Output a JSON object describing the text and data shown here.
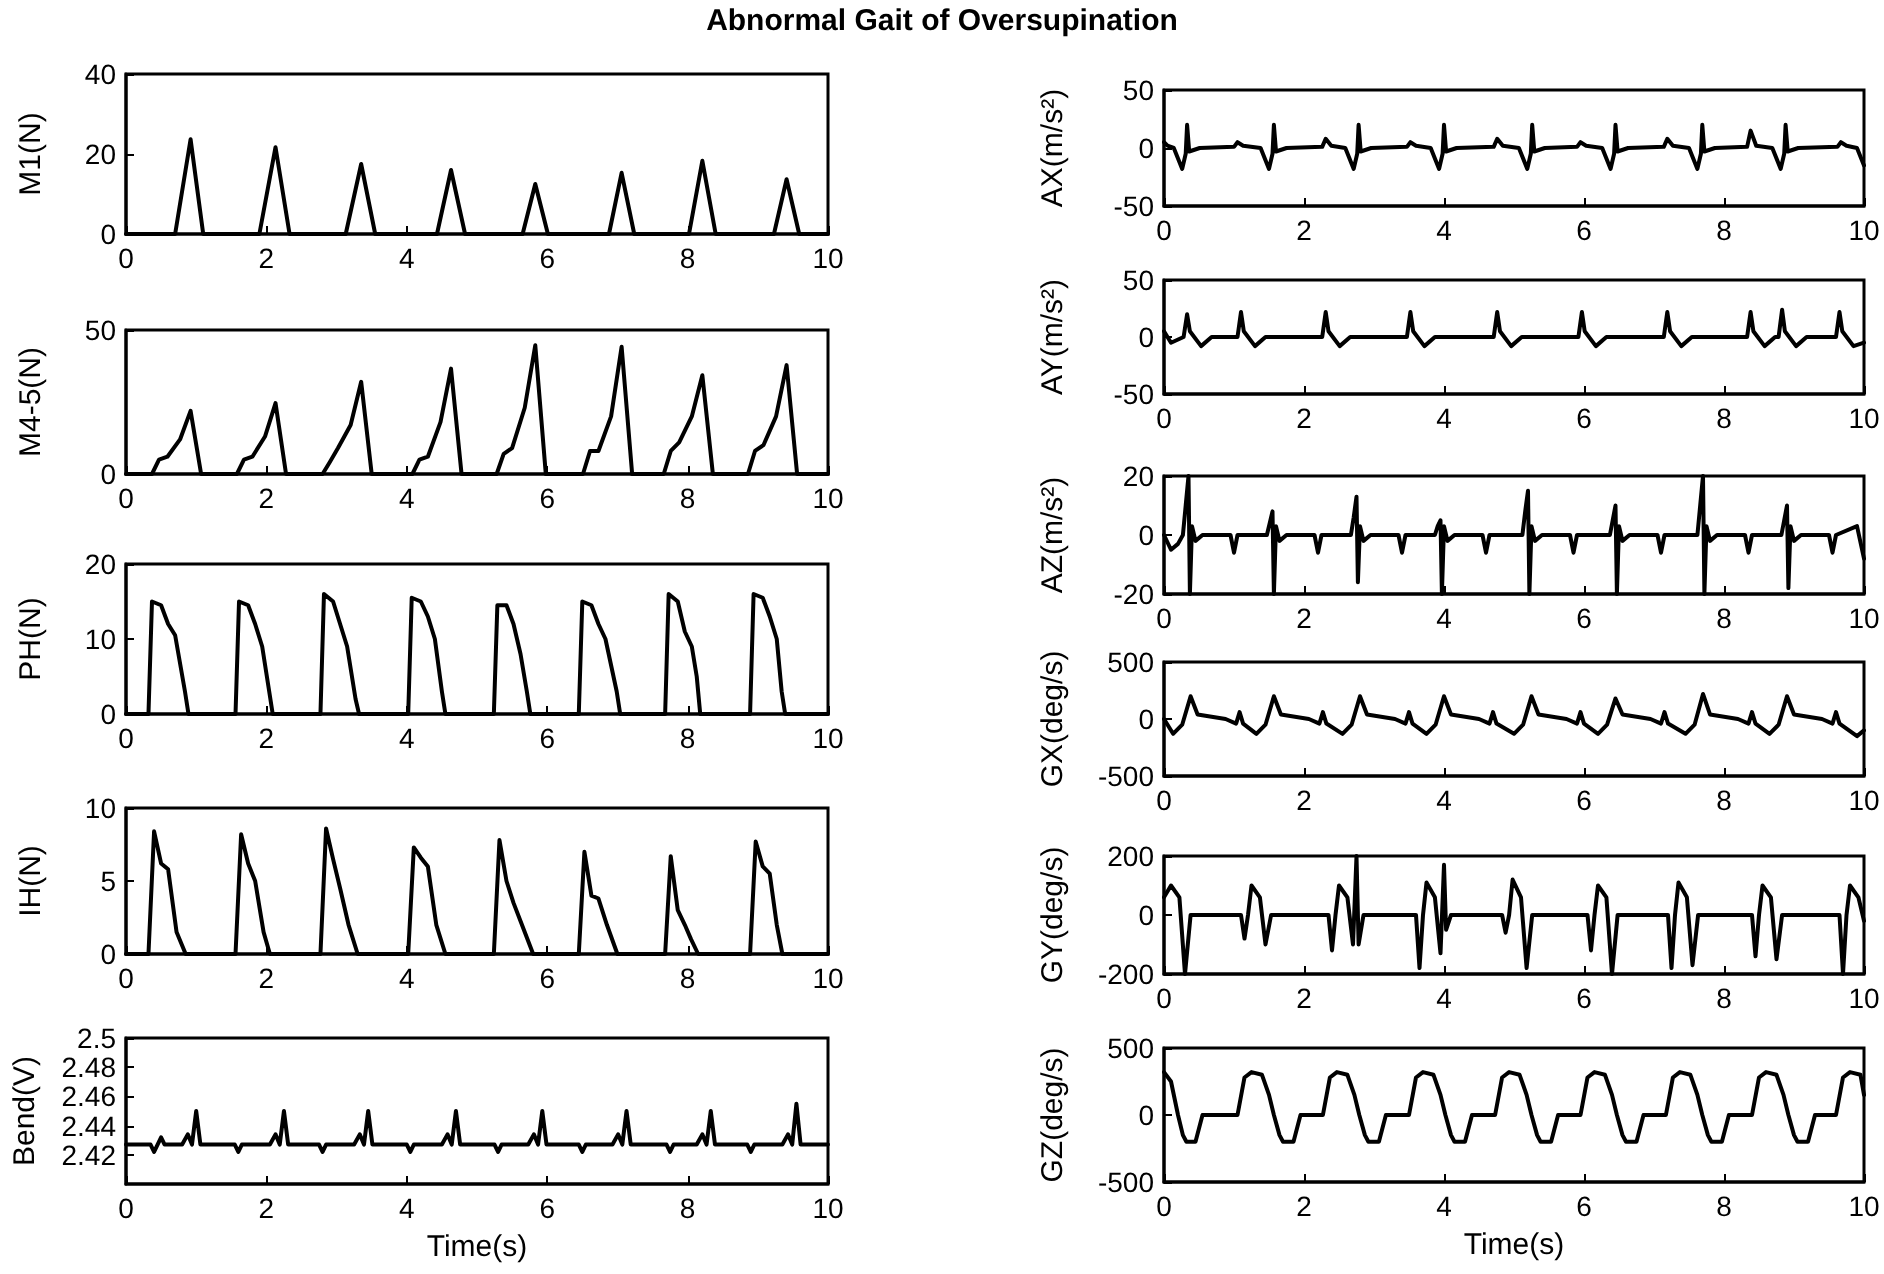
{
  "chart_data": [
    {
      "type": "line",
      "title": "Abnormal Gait of Oversupination",
      "ylabel": "M1(N)",
      "color": "#000000",
      "xlim": [
        0,
        10
      ],
      "ylim": [
        0,
        40
      ],
      "xticks": [
        0,
        2,
        4,
        6,
        8,
        10
      ],
      "yticks": [
        0,
        20,
        40
      ],
      "x": [
        0,
        0.7,
        0.92,
        1.1,
        1.9,
        2.13,
        2.33,
        3.13,
        3.35,
        3.55,
        4.43,
        4.63,
        4.83,
        5.65,
        5.83,
        6.01,
        6.88,
        7.06,
        7.24,
        8.02,
        8.21,
        8.4,
        9.23,
        9.41,
        9.59,
        10
      ],
      "values": [
        0,
        0,
        23.7,
        0,
        0,
        21.7,
        0,
        0,
        17.5,
        0,
        0,
        16,
        0,
        0,
        12.5,
        0,
        0,
        15.3,
        0,
        0,
        18.3,
        0,
        0,
        13.7,
        0,
        0
      ]
    },
    {
      "type": "line",
      "ylabel": "M4-5(N)",
      "color": "#000000",
      "xlim": [
        0,
        10
      ],
      "ylim": [
        0,
        50
      ],
      "xticks": [
        0,
        2,
        4,
        6,
        8,
        10
      ],
      "yticks": [
        0,
        50
      ],
      "x": [
        0,
        0.37,
        0.47,
        0.59,
        0.77,
        0.92,
        1.07,
        1.58,
        1.68,
        1.8,
        1.98,
        2.13,
        2.28,
        2.8,
        2.9,
        3.02,
        3.2,
        3.35,
        3.5,
        4.08,
        4.18,
        4.3,
        4.48,
        4.63,
        4.78,
        5.28,
        5.38,
        5.5,
        5.68,
        5.83,
        5.98,
        6.51,
        6.61,
        6.73,
        6.91,
        7.06,
        7.21,
        7.66,
        7.76,
        7.88,
        8.06,
        8.21,
        8.36,
        8.86,
        8.96,
        9.08,
        9.26,
        9.41,
        9.56,
        10
      ],
      "values": [
        0,
        0,
        5,
        6,
        12,
        21.9,
        0,
        0,
        5,
        6,
        13,
        24.6,
        0,
        0,
        4,
        9,
        17,
        32,
        0,
        0,
        5,
        6,
        18,
        36.6,
        0,
        0,
        7,
        9,
        23,
        44.7,
        0,
        0,
        8,
        8,
        20,
        44.2,
        0,
        0,
        8,
        11,
        20,
        34.3,
        0,
        0,
        8,
        10,
        20,
        37.8,
        0,
        0
      ]
    },
    {
      "type": "line",
      "ylabel": "PH(N)",
      "color": "#000000",
      "xlim": [
        0,
        10
      ],
      "ylim": [
        0,
        20
      ],
      "xticks": [
        0,
        2,
        4,
        6,
        8,
        10
      ],
      "yticks": [
        0,
        10,
        20
      ],
      "x": [
        0,
        0.32,
        0.37,
        0.5,
        0.6,
        0.7,
        0.84,
        0.89,
        1.56,
        1.61,
        1.74,
        1.84,
        1.94,
        2.04,
        2.09,
        2.77,
        2.82,
        2.95,
        3.05,
        3.15,
        3.27,
        3.32,
        4.02,
        4.07,
        4.2,
        4.3,
        4.4,
        4.5,
        4.55,
        5.24,
        5.29,
        5.42,
        5.52,
        5.62,
        5.71,
        5.76,
        6.45,
        6.5,
        6.63,
        6.73,
        6.83,
        6.99,
        7.04,
        7.68,
        7.73,
        7.86,
        7.96,
        8.06,
        8.13,
        8.18,
        8.89,
        8.94,
        9.07,
        9.17,
        9.27,
        9.34,
        9.39,
        10
      ],
      "values": [
        0,
        0,
        15,
        14.5,
        12,
        10.5,
        3,
        0,
        0,
        15,
        14.5,
        12,
        9,
        3,
        0,
        0,
        16,
        15,
        12,
        9,
        2,
        0,
        0,
        15.5,
        15,
        13,
        10,
        3,
        0,
        0,
        14.5,
        14.5,
        12,
        8,
        3,
        0,
        0,
        15,
        14.5,
        12,
        10,
        3,
        0,
        0,
        16,
        15,
        11,
        9,
        5,
        0,
        0,
        16,
        15.5,
        13,
        10,
        3,
        0,
        0
      ]
    },
    {
      "type": "line",
      "ylabel": "IH(N)",
      "color": "#000000",
      "xlim": [
        0,
        10
      ],
      "ylim": [
        0,
        10
      ],
      "xticks": [
        0,
        2,
        4,
        6,
        8,
        10
      ],
      "yticks": [
        0,
        5,
        10
      ],
      "x": [
        0,
        0.32,
        0.4,
        0.5,
        0.6,
        0.72,
        0.85,
        1.56,
        1.64,
        1.74,
        1.84,
        1.96,
        2.05,
        2.77,
        2.85,
        2.95,
        3.05,
        3.17,
        3.3,
        4.02,
        4.1,
        4.2,
        4.3,
        4.42,
        4.55,
        5.24,
        5.32,
        5.42,
        5.52,
        5.64,
        5.8,
        6.45,
        6.53,
        6.63,
        6.73,
        6.85,
        7.0,
        7.68,
        7.76,
        7.86,
        7.96,
        8.05,
        8.15,
        8.89,
        8.97,
        9.07,
        9.17,
        9.27,
        9.35,
        10
      ],
      "values": [
        0,
        0,
        8.4,
        6.2,
        5.8,
        1.5,
        0,
        0,
        8.2,
        6.2,
        5,
        1.5,
        0,
        0,
        8.6,
        6.5,
        4.5,
        2,
        0,
        0,
        7.3,
        6.6,
        6,
        2,
        0,
        0,
        7.8,
        5,
        3.5,
        2,
        0,
        0,
        7,
        4,
        3.8,
        2,
        0,
        0,
        6.7,
        3,
        2,
        1,
        0,
        0,
        7.7,
        6,
        5.5,
        2,
        0,
        0
      ]
    },
    {
      "type": "line",
      "ylabel": "Bend(V)",
      "xlabel": "Time(s)",
      "color": "#000000",
      "xlim": [
        0,
        10
      ],
      "ylim": [
        2.4,
        2.5
      ],
      "xticks": [
        0,
        2,
        4,
        6,
        8,
        10
      ],
      "yticks": [
        2.42,
        2.44,
        2.46,
        2.48,
        2.5
      ],
      "x": [
        0,
        0.35,
        0.4,
        0.45,
        0.5,
        0.55,
        0.8,
        0.88,
        0.94,
        1.0,
        1.06,
        1.55,
        1.6,
        1.65,
        2.05,
        2.13,
        2.19,
        2.25,
        2.31,
        2.75,
        2.8,
        2.85,
        3.25,
        3.33,
        3.39,
        3.45,
        3.51,
        4.0,
        4.05,
        4.1,
        4.5,
        4.58,
        4.64,
        4.7,
        4.76,
        5.25,
        5.3,
        5.35,
        5.73,
        5.81,
        5.87,
        5.93,
        5.99,
        6.45,
        6.5,
        6.55,
        6.93,
        7.01,
        7.07,
        7.13,
        7.19,
        7.7,
        7.75,
        7.8,
        8.13,
        8.21,
        8.27,
        8.33,
        8.39,
        8.85,
        8.9,
        8.95,
        9.35,
        9.43,
        9.49,
        9.55,
        9.61,
        10
      ],
      "values": [
        2.427,
        2.427,
        2.422,
        2.427,
        2.432,
        2.427,
        2.427,
        2.434,
        2.427,
        2.45,
        2.427,
        2.427,
        2.422,
        2.427,
        2.427,
        2.434,
        2.427,
        2.45,
        2.427,
        2.427,
        2.422,
        2.427,
        2.427,
        2.434,
        2.427,
        2.45,
        2.427,
        2.427,
        2.422,
        2.427,
        2.427,
        2.434,
        2.427,
        2.45,
        2.427,
        2.427,
        2.422,
        2.427,
        2.427,
        2.434,
        2.427,
        2.45,
        2.427,
        2.427,
        2.422,
        2.427,
        2.427,
        2.434,
        2.427,
        2.45,
        2.427,
        2.427,
        2.422,
        2.427,
        2.427,
        2.434,
        2.427,
        2.45,
        2.427,
        2.427,
        2.422,
        2.427,
        2.427,
        2.434,
        2.427,
        2.455,
        2.427,
        2.427
      ]
    },
    {
      "type": "line",
      "ylabel": "AX(m/s²)",
      "color": "#000000",
      "xlim": [
        0,
        10
      ],
      "ylim": [
        -50,
        50
      ],
      "xticks": [
        0,
        2,
        4,
        6,
        8,
        10
      ],
      "yticks": [
        -50,
        0,
        50
      ],
      "x": [
        0,
        0.05,
        0.14,
        0.26,
        0.31,
        0.33,
        0.36,
        0.51,
        1.0,
        1.05,
        1.13,
        1.38,
        1.5,
        1.55,
        1.57,
        1.6,
        1.75,
        2.26,
        2.31,
        2.39,
        2.59,
        2.71,
        2.76,
        2.78,
        2.81,
        2.96,
        3.47,
        3.52,
        3.6,
        3.81,
        3.93,
        3.98,
        4.0,
        4.03,
        4.18,
        4.71,
        4.76,
        4.84,
        5.07,
        5.19,
        5.24,
        5.26,
        5.29,
        5.44,
        5.9,
        5.95,
        6.03,
        6.26,
        6.38,
        6.43,
        6.45,
        6.48,
        6.63,
        7.14,
        7.19,
        7.27,
        7.5,
        7.62,
        7.67,
        7.69,
        7.72,
        7.87,
        8.33,
        8.38,
        8.46,
        8.69,
        8.81,
        8.86,
        8.88,
        8.91,
        9.06,
        9.62,
        9.67,
        9.75,
        9.9,
        10
      ],
      "values": [
        5,
        2,
        0,
        -18,
        -5,
        20,
        -3,
        0,
        1,
        5,
        2,
        0,
        -18,
        -5,
        20,
        -3,
        0,
        1,
        8,
        2,
        0,
        -18,
        -5,
        20,
        -3,
        0,
        1,
        5,
        2,
        0,
        -18,
        -5,
        20,
        -3,
        0,
        1,
        8,
        2,
        0,
        -18,
        -5,
        20,
        -3,
        0,
        1,
        5,
        2,
        0,
        -18,
        -5,
        20,
        -3,
        0,
        1,
        8,
        2,
        0,
        -18,
        -5,
        20,
        -3,
        0,
        1,
        15,
        2,
        0,
        -18,
        -5,
        20,
        -3,
        0,
        1,
        5,
        2,
        0,
        -15
      ]
    },
    {
      "type": "line",
      "ylabel": "AY(m/s²)",
      "color": "#000000",
      "xlim": [
        0,
        10
      ],
      "ylim": [
        -50,
        50
      ],
      "xticks": [
        0,
        2,
        4,
        6,
        8,
        10
      ],
      "yticks": [
        -50,
        0,
        50
      ],
      "x": [
        0,
        0.1,
        0.28,
        0.33,
        0.37,
        0.53,
        0.68,
        1.05,
        1.1,
        1.14,
        1.3,
        1.45,
        2.26,
        2.31,
        2.35,
        2.51,
        2.66,
        3.47,
        3.52,
        3.56,
        3.72,
        3.87,
        4.71,
        4.76,
        4.8,
        4.96,
        5.11,
        5.92,
        5.97,
        6.01,
        6.17,
        6.32,
        7.14,
        7.19,
        7.23,
        7.39,
        7.54,
        8.33,
        8.38,
        8.42,
        8.58,
        8.73,
        8.78,
        8.83,
        8.87,
        9.03,
        9.18,
        9.6,
        9.65,
        9.69,
        9.85,
        10
      ],
      "values": [
        5,
        -5,
        0,
        20,
        5,
        -8,
        0,
        0,
        22,
        5,
        -8,
        0,
        0,
        22,
        5,
        -8,
        0,
        0,
        22,
        5,
        -8,
        0,
        0,
        22,
        5,
        -8,
        0,
        0,
        22,
        5,
        -8,
        0,
        0,
        22,
        5,
        -8,
        0,
        0,
        22,
        5,
        -8,
        0,
        0,
        24,
        5,
        -8,
        0,
        0,
        22,
        5,
        -8,
        -5
      ]
    },
    {
      "type": "line",
      "ylabel": "AZ(m/s²)",
      "color": "#000000",
      "xlim": [
        0,
        10
      ],
      "ylim": [
        -20,
        20
      ],
      "xticks": [
        0,
        2,
        4,
        6,
        8,
        10
      ],
      "yticks": [
        -20,
        0,
        20
      ],
      "x": [
        0,
        0.1,
        0.2,
        0.27,
        0.31,
        0.35,
        0.37,
        0.4,
        0.45,
        0.55,
        0.95,
        1.0,
        1.05,
        1.47,
        1.51,
        1.55,
        1.57,
        1.6,
        1.65,
        1.75,
        2.15,
        2.2,
        2.25,
        2.67,
        2.71,
        2.75,
        2.77,
        2.8,
        2.85,
        2.95,
        3.35,
        3.4,
        3.45,
        3.87,
        3.91,
        3.95,
        3.97,
        4.0,
        4.05,
        4.15,
        4.55,
        4.6,
        4.65,
        5.12,
        5.16,
        5.2,
        5.22,
        5.25,
        5.3,
        5.4,
        5.8,
        5.85,
        5.9,
        6.37,
        6.41,
        6.45,
        6.47,
        6.5,
        6.55,
        6.65,
        7.05,
        7.1,
        7.15,
        7.62,
        7.66,
        7.7,
        7.72,
        7.75,
        7.8,
        7.9,
        8.3,
        8.35,
        8.4,
        8.82,
        8.86,
        8.9,
        8.92,
        8.95,
        9.0,
        9.1,
        9.5,
        9.55,
        9.6,
        9.9,
        10
      ],
      "values": [
        0,
        -5,
        -3,
        0,
        10,
        20,
        -20,
        3,
        -2,
        0,
        0,
        -6,
        0,
        0,
        4,
        8,
        -20,
        3,
        -2,
        0,
        0,
        -6,
        0,
        0,
        6,
        13,
        -16,
        3,
        -2,
        0,
        0,
        -6,
        0,
        0,
        3,
        5,
        -20,
        3,
        -2,
        0,
        0,
        -6,
        0,
        0,
        8,
        15,
        -20,
        3,
        -2,
        0,
        0,
        -6,
        0,
        0,
        5,
        10,
        -20,
        3,
        -2,
        0,
        0,
        -6,
        0,
        0,
        10,
        20,
        -20,
        3,
        -2,
        0,
        0,
        -6,
        0,
        0,
        5,
        10,
        -18,
        3,
        -2,
        0,
        0,
        -6,
        0,
        3,
        -8
      ]
    },
    {
      "type": "line",
      "ylabel": "GX(deg/s)",
      "color": "#000000",
      "xlim": [
        0,
        10
      ],
      "ylim": [
        -500,
        500
      ],
      "xticks": [
        0,
        2,
        4,
        6,
        8,
        10
      ],
      "yticks": [
        -500,
        0,
        500
      ],
      "x": [
        0,
        0.13,
        0.26,
        0.38,
        0.48,
        0.88,
        1.03,
        1.08,
        1.13,
        1.32,
        1.45,
        1.57,
        1.67,
        2.07,
        2.22,
        2.27,
        2.32,
        2.55,
        2.68,
        2.8,
        2.9,
        3.3,
        3.45,
        3.5,
        3.55,
        3.75,
        3.88,
        4.0,
        4.1,
        4.5,
        4.65,
        4.7,
        4.75,
        5.0,
        5.13,
        5.25,
        5.35,
        5.75,
        5.9,
        5.95,
        6.0,
        6.2,
        6.33,
        6.45,
        6.55,
        6.95,
        7.1,
        7.15,
        7.2,
        7.45,
        7.58,
        7.7,
        7.8,
        8.2,
        8.35,
        8.4,
        8.45,
        8.65,
        8.78,
        8.9,
        9.0,
        9.4,
        9.55,
        9.6,
        9.65,
        9.9,
        10
      ],
      "values": [
        0,
        -130,
        -50,
        200,
        40,
        0,
        -40,
        60,
        -40,
        -130,
        -50,
        200,
        40,
        0,
        -40,
        60,
        -40,
        -130,
        -50,
        200,
        40,
        0,
        -40,
        60,
        -40,
        -130,
        -50,
        200,
        40,
        0,
        -40,
        60,
        -40,
        -130,
        -50,
        200,
        40,
        0,
        -40,
        60,
        -40,
        -130,
        -50,
        180,
        40,
        0,
        -40,
        60,
        -40,
        -130,
        -50,
        220,
        40,
        0,
        -40,
        60,
        -40,
        -130,
        -50,
        200,
        40,
        0,
        -40,
        60,
        -40,
        -150,
        -100
      ]
    },
    {
      "type": "line",
      "ylabel": "GY(deg/s)",
      "color": "#000000",
      "xlim": [
        0,
        10
      ],
      "ylim": [
        -200,
        200
      ],
      "xticks": [
        0,
        2,
        4,
        6,
        8,
        10
      ],
      "yticks": [
        -200,
        0,
        200
      ],
      "x": [
        0,
        0.1,
        0.22,
        0.3,
        0.38,
        1.1,
        1.15,
        1.2,
        1.25,
        1.37,
        1.45,
        1.53,
        2.35,
        2.4,
        2.45,
        2.5,
        2.62,
        2.7,
        2.75,
        2.78,
        2.85,
        3.6,
        3.65,
        3.7,
        3.75,
        3.87,
        3.95,
        4.0,
        4.03,
        4.1,
        4.83,
        4.88,
        4.93,
        4.98,
        5.1,
        5.18,
        5.26,
        6.05,
        6.1,
        6.15,
        6.2,
        6.32,
        6.4,
        6.48,
        7.2,
        7.25,
        7.3,
        7.35,
        7.47,
        7.55,
        7.63,
        8.4,
        8.45,
        8.5,
        8.55,
        8.67,
        8.75,
        8.83,
        9.65,
        9.7,
        9.75,
        9.8,
        9.92,
        10
      ],
      "values": [
        60,
        100,
        60,
        -200,
        0,
        0,
        -80,
        0,
        100,
        60,
        -100,
        0,
        0,
        -120,
        0,
        100,
        60,
        -100,
        200,
        -100,
        0,
        0,
        -180,
        0,
        110,
        60,
        -130,
        170,
        -50,
        0,
        0,
        -60,
        0,
        120,
        60,
        -180,
        0,
        0,
        -120,
        0,
        100,
        60,
        -200,
        0,
        0,
        -180,
        0,
        110,
        60,
        -170,
        0,
        0,
        -140,
        0,
        100,
        60,
        -150,
        0,
        0,
        -200,
        0,
        100,
        60,
        -20
      ]
    },
    {
      "type": "line",
      "ylabel": "GZ(deg/s)",
      "xlabel": "Time(s)",
      "color": "#000000",
      "xlim": [
        0,
        10
      ],
      "ylim": [
        -500,
        500
      ],
      "xticks": [
        0,
        2,
        4,
        6,
        8,
        10
      ],
      "yticks": [
        -500,
        0,
        500
      ],
      "x": [
        0,
        0.1,
        0.2,
        0.27,
        0.32,
        0.45,
        0.55,
        1.05,
        1.15,
        1.25,
        1.4,
        1.5,
        1.57,
        1.65,
        1.7,
        1.85,
        1.95,
        2.27,
        2.37,
        2.47,
        2.62,
        2.72,
        2.79,
        2.87,
        2.92,
        3.07,
        3.17,
        3.5,
        3.6,
        3.7,
        3.85,
        3.95,
        4.02,
        4.1,
        4.15,
        4.3,
        4.4,
        4.73,
        4.83,
        4.93,
        5.08,
        5.18,
        5.25,
        5.33,
        5.38,
        5.53,
        5.63,
        5.95,
        6.05,
        6.15,
        6.3,
        6.4,
        6.47,
        6.55,
        6.6,
        6.75,
        6.85,
        7.17,
        7.27,
        7.37,
        7.52,
        7.62,
        7.69,
        7.77,
        7.82,
        7.97,
        8.07,
        8.4,
        8.5,
        8.6,
        8.75,
        8.85,
        8.92,
        9.0,
        9.05,
        9.2,
        9.3,
        9.6,
        9.7,
        9.8,
        9.95,
        10
      ],
      "values": [
        320,
        250,
        0,
        -150,
        -200,
        -200,
        0,
        0,
        280,
        320,
        300,
        150,
        0,
        -150,
        -200,
        -200,
        0,
        0,
        280,
        320,
        300,
        150,
        0,
        -150,
        -200,
        -200,
        0,
        0,
        280,
        320,
        300,
        150,
        0,
        -150,
        -200,
        -200,
        0,
        0,
        280,
        320,
        300,
        150,
        0,
        -150,
        -200,
        -200,
        0,
        0,
        280,
        320,
        300,
        150,
        0,
        -150,
        -200,
        -200,
        0,
        0,
        280,
        320,
        300,
        150,
        0,
        -150,
        -200,
        -200,
        0,
        0,
        280,
        320,
        300,
        150,
        0,
        -150,
        -200,
        -200,
        0,
        0,
        280,
        320,
        300,
        150
      ]
    }
  ]
}
